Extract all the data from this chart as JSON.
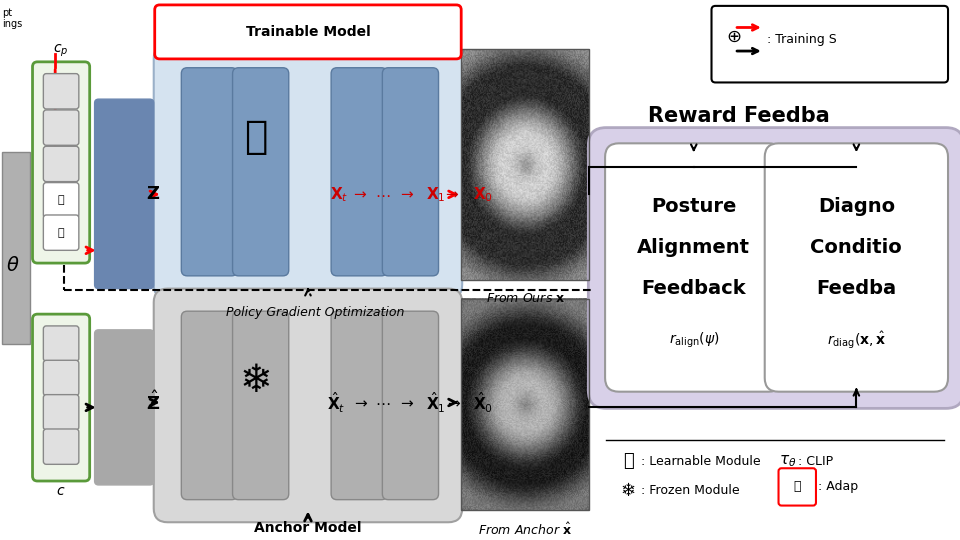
{
  "bg_color": "#ffffff",
  "trainable_label": "Trainable Model",
  "anchor_label": "Anchor Model",
  "policy_text": "Policy Gradient Optimization",
  "from_ours_text": "From Ours ",
  "from_anchor_text": "From Anchor ",
  "reward_feedback_text": "Reward Feedba",
  "posture_lines": [
    "Posture",
    "Alignment",
    "Feedback"
  ],
  "posture_math": "$r_{\\mathrm{align}}(\\psi)$",
  "diag_lines": [
    "Diagno",
    "Conditio",
    "Feedba"
  ],
  "diag_math": "$r_{\\mathrm{diag}}(\\mathbf{x}, \\hat{\\mathbf{x}}$",
  "learnable_text": ": Learnable Module",
  "frozen_text": ": Frozen Module",
  "tau_text": ": CLIP ",
  "adapt_text": ": Adap",
  "training_text": ": Training S",
  "cp_text": "$c_p$",
  "c_text": "$c$",
  "theta_text": "$\\theta$"
}
